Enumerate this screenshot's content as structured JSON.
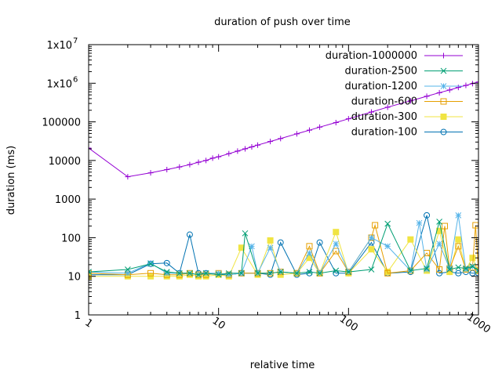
{
  "chart_data": {
    "type": "line",
    "title": "duration of push over time",
    "xlabel": "relative time",
    "ylabel": "duration (ms)",
    "xscale": "log",
    "yscale": "log",
    "xlim": [
      1,
      1000
    ],
    "ylim": [
      1,
      10000000
    ],
    "grid": false,
    "legend_position": "top-right",
    "x_ticks": [
      {
        "value": 1,
        "label": "1"
      },
      {
        "value": 10,
        "label": "10"
      },
      {
        "value": 100,
        "label": "100"
      },
      {
        "value": 1000,
        "label": "1000"
      }
    ],
    "y_ticks": [
      {
        "value": 1,
        "label": "1"
      },
      {
        "value": 10,
        "label": "10"
      },
      {
        "value": 100,
        "label": "100"
      },
      {
        "value": 1000,
        "label": "1000"
      },
      {
        "value": 10000,
        "label": "10000"
      },
      {
        "value": 100000,
        "label": "100000"
      },
      {
        "value": 1000000,
        "label": "1x10",
        "exponent": "6"
      },
      {
        "value": 10000000,
        "label": "1x10",
        "exponent": "7"
      }
    ],
    "series": [
      {
        "name": "duration-1000000",
        "color": "#9400d3",
        "marker": "plus",
        "x": [
          1,
          2,
          3,
          4,
          5,
          6,
          7,
          8,
          9,
          10,
          12,
          14,
          16,
          18,
          20,
          25,
          30,
          40,
          50,
          60,
          80,
          100,
          150,
          200,
          300,
          400,
          500,
          600,
          700,
          800,
          900,
          1000
        ],
        "y": [
          21000,
          3800,
          4800,
          5800,
          6800,
          7800,
          9000,
          10000,
          11500,
          12500,
          15000,
          17500,
          20000,
          22500,
          25000,
          31000,
          37000,
          49000,
          61000,
          73000,
          96000,
          120000,
          180000,
          240000,
          350000,
          460000,
          570000,
          670000,
          780000,
          880000,
          980000,
          1080000
        ]
      },
      {
        "name": "duration-2500",
        "color": "#009e73",
        "marker": "x",
        "x": [
          1,
          2,
          3,
          4,
          5,
          6,
          7,
          8,
          10,
          12,
          15,
          16,
          20,
          25,
          30,
          40,
          50,
          60,
          80,
          100,
          150,
          200,
          300,
          400,
          500,
          600,
          700,
          800,
          900,
          1000
        ],
        "y": [
          13,
          15,
          21,
          13,
          12,
          12,
          11,
          12,
          11,
          12,
          12,
          130,
          12,
          12,
          13,
          12,
          13,
          12,
          14,
          13,
          15,
          230,
          14,
          16,
          260,
          15,
          17,
          16,
          18,
          14
        ]
      },
      {
        "name": "duration-1200",
        "color": "#56b4e9",
        "marker": "star",
        "x": [
          1,
          2,
          3,
          4,
          5,
          6,
          7,
          8,
          10,
          12,
          15,
          18,
          20,
          25,
          30,
          40,
          50,
          60,
          80,
          100,
          150,
          200,
          300,
          350,
          400,
          500,
          600,
          700,
          800,
          900,
          1000
        ],
        "y": [
          13,
          12,
          22,
          12,
          12,
          12,
          11,
          12,
          12,
          11,
          12,
          60,
          12,
          55,
          13,
          12,
          40,
          12,
          70,
          13,
          100,
          60,
          14,
          240,
          15,
          70,
          16,
          380,
          15,
          18,
          14
        ]
      },
      {
        "name": "duration-600",
        "color": "#e69f00",
        "marker": "square-open",
        "x": [
          1,
          2,
          3,
          4,
          5,
          6,
          7,
          8,
          10,
          12,
          15,
          20,
          25,
          30,
          40,
          50,
          60,
          80,
          100,
          150,
          160,
          200,
          300,
          400,
          500,
          550,
          600,
          700,
          800,
          900,
          950,
          1000
        ],
        "y": [
          12,
          11,
          12,
          11,
          11,
          12,
          11,
          11,
          12,
          11,
          12,
          12,
          12,
          13,
          12,
          60,
          12,
          45,
          13,
          100,
          210,
          12,
          14,
          40,
          15,
          200,
          16,
          60,
          15,
          17,
          210,
          14
        ]
      },
      {
        "name": "duration-300",
        "color": "#f0e442",
        "marker": "square-filled",
        "x": [
          1,
          2,
          3,
          4,
          5,
          6,
          7,
          8,
          10,
          12,
          15,
          20,
          25,
          30,
          40,
          50,
          60,
          80,
          100,
          150,
          200,
          300,
          400,
          500,
          600,
          700,
          800,
          900,
          1000
        ],
        "y": [
          10,
          10,
          10,
          10,
          10,
          11,
          10,
          10,
          11,
          10,
          55,
          11,
          85,
          11,
          12,
          30,
          12,
          140,
          12,
          50,
          13,
          90,
          14,
          150,
          13,
          90,
          15,
          30,
          14
        ]
      },
      {
        "name": "duration-100",
        "color": "#0072b2",
        "marker": "circle-open",
        "x": [
          1,
          2,
          3,
          4,
          5,
          6,
          7,
          8,
          10,
          12,
          15,
          20,
          25,
          30,
          40,
          50,
          60,
          80,
          100,
          150,
          200,
          300,
          400,
          500,
          600,
          700,
          800,
          900,
          1000
        ],
        "y": [
          11,
          11,
          21,
          22,
          12,
          120,
          12,
          12,
          11,
          11,
          12,
          12,
          11,
          75,
          11,
          12,
          75,
          12,
          12,
          75,
          12,
          13,
          380,
          12,
          13,
          12,
          13,
          12,
          12
        ]
      }
    ]
  }
}
